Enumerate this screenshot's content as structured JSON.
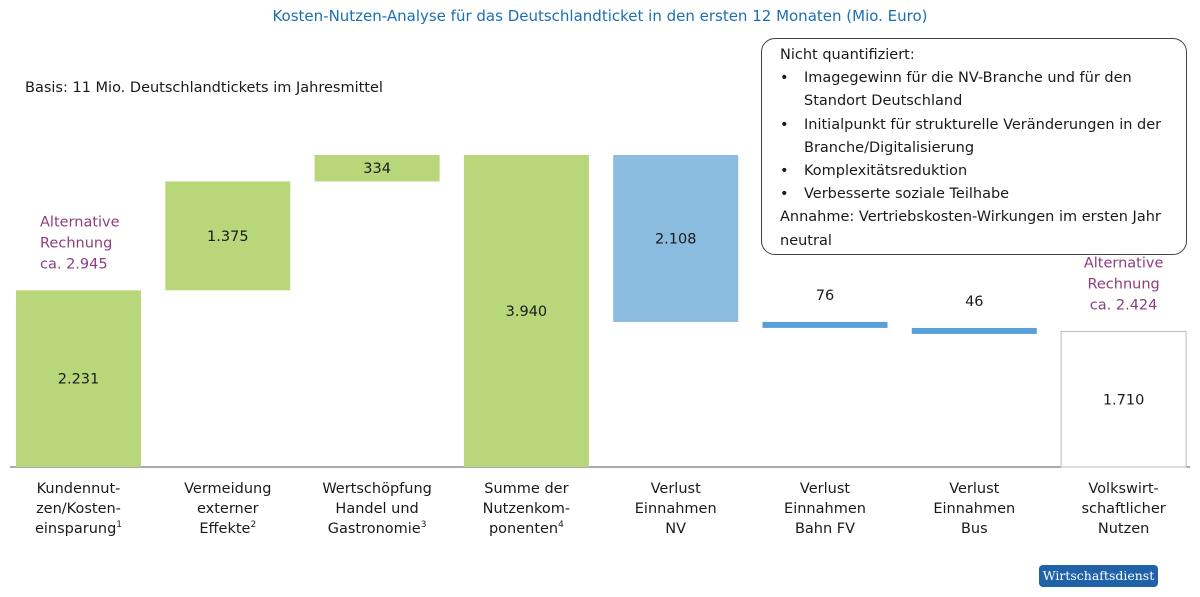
{
  "chart_data": {
    "type": "bar",
    "subtype": "waterfall",
    "title": "Kosten-Nutzen-Analyse für das Deutschlandticket in den ersten 12 Monaten (Mio. Euro)",
    "subtitle": "Basis: 11 Mio. Deutschlandtickets im Jahresmittel",
    "categories": [
      {
        "lines": [
          "Kundennut-",
          "zen/Kosten-",
          "einsparung"
        ],
        "sup": "1"
      },
      {
        "lines": [
          "Vermeidung",
          "externer",
          "Effekte"
        ],
        "sup": "2"
      },
      {
        "lines": [
          "Wertschöpfung",
          "Handel und",
          "Gastronomie"
        ],
        "sup": "3"
      },
      {
        "lines": [
          "Summe der",
          "Nutzenkom-",
          "ponenten"
        ],
        "sup": "4"
      },
      {
        "lines": [
          "Verlust",
          "Einnahmen",
          "NV"
        ],
        "sup": ""
      },
      {
        "lines": [
          "Verlust",
          "Einnahmen",
          "Bahn FV"
        ],
        "sup": ""
      },
      {
        "lines": [
          "Verlust",
          "Einnahmen",
          "Bus"
        ],
        "sup": ""
      },
      {
        "lines": [
          "Volkswirt-",
          "schaftlicher",
          "Nutzen"
        ],
        "sup": ""
      }
    ],
    "bars": [
      {
        "start": 0,
        "end": 2231,
        "label": "2.231",
        "kind": "benefit"
      },
      {
        "start": 2231,
        "end": 3606,
        "label": "1.375",
        "kind": "benefit"
      },
      {
        "start": 3606,
        "end": 3940,
        "label": "334",
        "kind": "benefit"
      },
      {
        "start": 0,
        "end": 3940,
        "label": "3.940",
        "kind": "benefit"
      },
      {
        "start": 3940,
        "end": 1832,
        "label": "2.108",
        "kind": "loss"
      },
      {
        "start": 1832,
        "end": 1756,
        "label": "76",
        "kind": "loss"
      },
      {
        "start": 1756,
        "end": 1710,
        "label": "46",
        "kind": "loss"
      },
      {
        "start": 0,
        "end": 1710,
        "label": "1.710",
        "kind": "result"
      }
    ],
    "ylim": [
      0,
      4000
    ],
    "grid": false,
    "legend": "none",
    "alternatives": [
      {
        "category_index": 0,
        "lines": [
          "Alternative",
          "Rechnung",
          "ca. 2.945"
        ]
      },
      {
        "category_index": 7,
        "lines": [
          "Alternative",
          "Rechnung",
          "ca. 2.424"
        ]
      }
    ],
    "colors": {
      "benefit": "#b8d77a",
      "loss": "#8bbcdf",
      "loss_thin": "#5b9fd8",
      "result_stroke": "#bbbbbb",
      "alternative": "#8e3d7e",
      "title": "#1b6fb5",
      "axis": "#555555"
    }
  },
  "note": {
    "heading": "Nicht quantifiziert:",
    "bullet_symbol": "•",
    "items": [
      "Imagegewinn für die NV-Branche und für den Standort Deutschland",
      "Initialpunkt für strukturelle Veränderungen in der Branche/Digitalisierung",
      "Komplexitätsreduktion",
      "Verbesserte soziale Teilhabe"
    ],
    "footer": "Annahme: Vertriebskosten-Wirkungen im ersten Jahr neutral"
  },
  "source_badge": "Wirtschaftsdienst"
}
